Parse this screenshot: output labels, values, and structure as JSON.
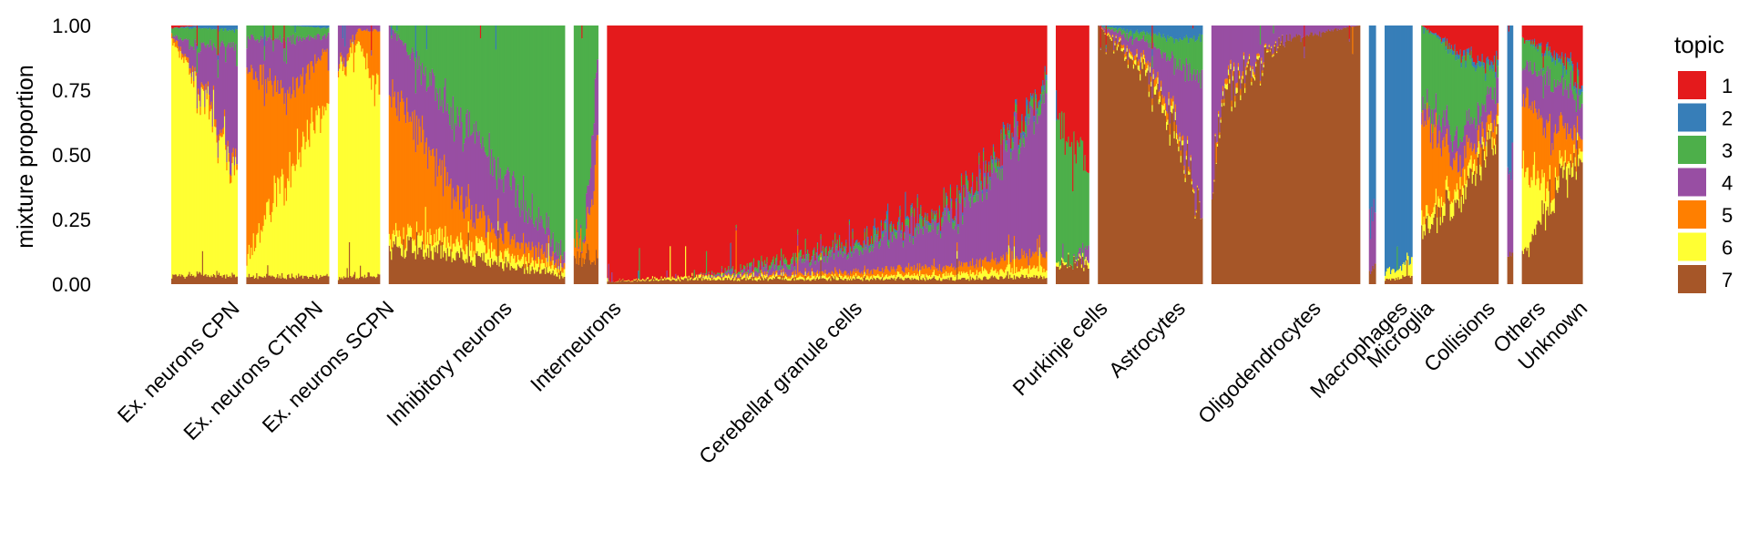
{
  "chart_data": {
    "type": "stacked-bar",
    "ylabel": "mixture proportion",
    "ylim": [
      0,
      1
    ],
    "yticks": [
      "0.00",
      "0.25",
      "0.50",
      "0.75",
      "1.00"
    ],
    "legend_title": "topic",
    "legend_placement": "right",
    "grid": false,
    "topics": [
      {
        "name": "1",
        "color": "#E41A1C"
      },
      {
        "name": "2",
        "color": "#377EB8"
      },
      {
        "name": "3",
        "color": "#4DAF4A"
      },
      {
        "name": "4",
        "color": "#984EA3"
      },
      {
        "name": "5",
        "color": "#FF7F00"
      },
      {
        "name": "6",
        "color": "#FFFF33"
      },
      {
        "name": "7",
        "color": "#A65628"
      }
    ],
    "groups": [
      {
        "label": "Ex. neurons CPN",
        "n_cells": 60,
        "profiles": [
          {
            "at": 0.0,
            "p": [
              0.01,
              0.0,
              0.02,
              0.0,
              0.02,
              0.92,
              0.03
            ]
          },
          {
            "at": 0.4,
            "p": [
              0.0,
              0.01,
              0.08,
              0.12,
              0.02,
              0.73,
              0.04
            ]
          },
          {
            "at": 1.0,
            "p": [
              0.0,
              0.02,
              0.05,
              0.45,
              0.03,
              0.42,
              0.03
            ]
          }
        ]
      },
      {
        "label": "Ex. neurons CThPN",
        "n_cells": 75,
        "profiles": [
          {
            "at": 0.0,
            "p": [
              0.0,
              0.0,
              0.05,
              0.12,
              0.73,
              0.07,
              0.03
            ]
          },
          {
            "at": 0.5,
            "p": [
              0.0,
              0.0,
              0.05,
              0.2,
              0.3,
              0.42,
              0.03
            ]
          },
          {
            "at": 1.0,
            "p": [
              0.0,
              0.01,
              0.03,
              0.05,
              0.2,
              0.68,
              0.03
            ]
          }
        ]
      },
      {
        "label": "Ex. neurons SCPN",
        "n_cells": 38,
        "profiles": [
          {
            "at": 0.0,
            "p": [
              0.0,
              0.0,
              0.0,
              0.14,
              0.02,
              0.82,
              0.02
            ]
          },
          {
            "at": 0.5,
            "p": [
              0.0,
              0.0,
              0.0,
              0.02,
              0.05,
              0.9,
              0.03
            ]
          },
          {
            "at": 1.0,
            "p": [
              0.0,
              0.0,
              0.0,
              0.02,
              0.22,
              0.73,
              0.03
            ]
          }
        ]
      },
      {
        "label": "Inhibitory neurons",
        "n_cells": 160,
        "profiles": [
          {
            "at": 0.0,
            "p": [
              0.0,
              0.0,
              0.0,
              0.25,
              0.55,
              0.05,
              0.15
            ]
          },
          {
            "at": 0.5,
            "p": [
              0.0,
              0.0,
              0.45,
              0.3,
              0.1,
              0.05,
              0.1
            ]
          },
          {
            "at": 1.0,
            "p": [
              0.0,
              0.0,
              0.9,
              0.03,
              0.02,
              0.02,
              0.03
            ]
          }
        ]
      },
      {
        "label": "Interneurons",
        "n_cells": 22,
        "profiles": [
          {
            "at": 0.0,
            "p": [
              0.0,
              0.0,
              0.85,
              0.0,
              0.05,
              0.0,
              0.1
            ]
          },
          {
            "at": 0.5,
            "p": [
              0.0,
              0.0,
              0.8,
              0.02,
              0.08,
              0.0,
              0.1
            ]
          },
          {
            "at": 1.0,
            "p": [
              0.0,
              0.0,
              0.15,
              0.35,
              0.4,
              0.0,
              0.1
            ]
          }
        ]
      },
      {
        "label": "Cerebellar granule cells",
        "n_cells": 400,
        "profiles": [
          {
            "at": 0.0,
            "p": [
              0.99,
              0.0,
              0.0,
              0.0,
              0.0,
              0.0,
              0.01
            ]
          },
          {
            "at": 0.2,
            "p": [
              0.97,
              0.0,
              0.0,
              0.0,
              0.0,
              0.01,
              0.02
            ]
          },
          {
            "at": 0.4,
            "p": [
              0.91,
              0.0,
              0.02,
              0.03,
              0.01,
              0.01,
              0.02
            ]
          },
          {
            "at": 0.6,
            "p": [
              0.82,
              0.01,
              0.02,
              0.1,
              0.02,
              0.01,
              0.02
            ]
          },
          {
            "at": 0.8,
            "p": [
              0.7,
              0.01,
              0.03,
              0.19,
              0.03,
              0.02,
              0.02
            ]
          },
          {
            "at": 1.0,
            "p": [
              0.22,
              0.02,
              0.04,
              0.6,
              0.06,
              0.03,
              0.03
            ]
          }
        ]
      },
      {
        "label": "Purkinje cells",
        "n_cells": 30,
        "profiles": [
          {
            "at": 0.0,
            "p": [
              0.3,
              0.0,
              0.6,
              0.0,
              0.0,
              0.02,
              0.08
            ]
          },
          {
            "at": 0.5,
            "p": [
              0.5,
              0.0,
              0.42,
              0.0,
              0.0,
              0.0,
              0.08
            ]
          },
          {
            "at": 1.0,
            "p": [
              0.55,
              0.0,
              0.3,
              0.05,
              0.0,
              0.02,
              0.08
            ]
          }
        ]
      },
      {
        "label": "Astrocytes",
        "n_cells": 95,
        "profiles": [
          {
            "at": 0.0,
            "p": [
              0.0,
              0.0,
              0.0,
              0.0,
              0.0,
              0.0,
              1.0
            ]
          },
          {
            "at": 0.45,
            "p": [
              0.0,
              0.03,
              0.03,
              0.08,
              0.02,
              0.02,
              0.82
            ]
          },
          {
            "at": 0.7,
            "p": [
              0.0,
              0.05,
              0.08,
              0.2,
              0.03,
              0.03,
              0.61
            ]
          },
          {
            "at": 1.0,
            "p": [
              0.0,
              0.05,
              0.15,
              0.5,
              0.0,
              0.0,
              0.3
            ]
          }
        ]
      },
      {
        "label": "Oligodendrocytes",
        "n_cells": 135,
        "profiles": [
          {
            "at": 0.0,
            "p": [
              0.0,
              0.0,
              0.0,
              0.6,
              0.0,
              0.0,
              0.4
            ]
          },
          {
            "at": 0.1,
            "p": [
              0.0,
              0.0,
              0.0,
              0.2,
              0.02,
              0.02,
              0.76
            ]
          },
          {
            "at": 0.5,
            "p": [
              0.0,
              0.0,
              0.0,
              0.05,
              0.0,
              0.0,
              0.95
            ]
          },
          {
            "at": 1.0,
            "p": [
              0.0,
              0.0,
              0.0,
              0.0,
              0.0,
              0.0,
              1.0
            ]
          }
        ]
      },
      {
        "label": "Macrophages",
        "n_cells": 6,
        "profiles": [
          {
            "at": 0.0,
            "p": [
              0.0,
              0.75,
              0.0,
              0.2,
              0.0,
              0.0,
              0.05
            ]
          },
          {
            "at": 1.0,
            "p": [
              0.0,
              0.75,
              0.0,
              0.2,
              0.0,
              0.0,
              0.05
            ]
          }
        ]
      },
      {
        "label": "Microglia",
        "n_cells": 25,
        "profiles": [
          {
            "at": 0.0,
            "p": [
              0.0,
              0.95,
              0.0,
              0.0,
              0.0,
              0.03,
              0.02
            ]
          },
          {
            "at": 1.0,
            "p": [
              0.0,
              0.92,
              0.0,
              0.0,
              0.0,
              0.05,
              0.03
            ]
          }
        ]
      },
      {
        "label": "Collisions",
        "n_cells": 70,
        "profiles": [
          {
            "at": 0.0,
            "p": [
              0.0,
              0.0,
              0.3,
              0.05,
              0.4,
              0.05,
              0.2
            ]
          },
          {
            "at": 0.5,
            "p": [
              0.1,
              0.02,
              0.3,
              0.1,
              0.08,
              0.05,
              0.35
            ]
          },
          {
            "at": 1.0,
            "p": [
              0.15,
              0.02,
              0.05,
              0.1,
              0.05,
              0.03,
              0.6
            ]
          }
        ]
      },
      {
        "label": "Others",
        "n_cells": 5,
        "profiles": [
          {
            "at": 0.0,
            "p": [
              0.0,
              0.55,
              0.0,
              0.35,
              0.0,
              0.0,
              0.1
            ]
          },
          {
            "at": 1.0,
            "p": [
              0.0,
              0.55,
              0.0,
              0.35,
              0.0,
              0.0,
              0.1
            ]
          }
        ]
      },
      {
        "label": "Unknown",
        "n_cells": 55,
        "profiles": [
          {
            "at": 0.0,
            "p": [
              0.05,
              0.0,
              0.1,
              0.1,
              0.3,
              0.35,
              0.1
            ]
          },
          {
            "at": 0.5,
            "p": [
              0.1,
              0.02,
              0.1,
              0.2,
              0.2,
              0.05,
              0.33
            ]
          },
          {
            "at": 1.0,
            "p": [
              0.2,
              0.02,
              0.05,
              0.1,
              0.05,
              0.03,
              0.55
            ]
          }
        ]
      }
    ]
  }
}
